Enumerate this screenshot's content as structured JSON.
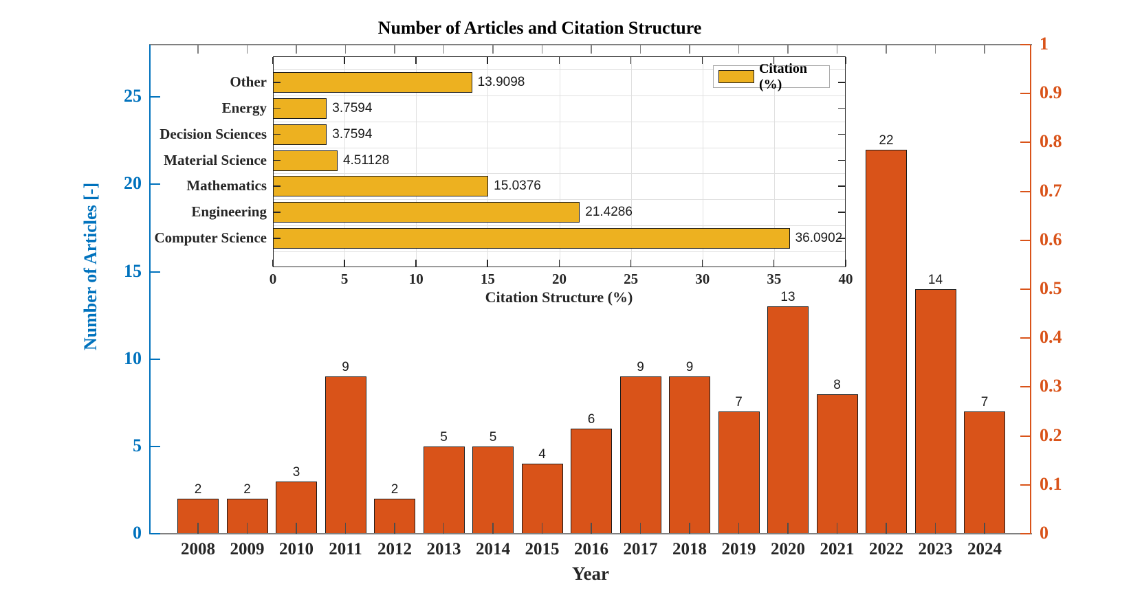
{
  "chart_data": [
    {
      "id": "articles-by-year",
      "type": "bar",
      "title": "Number of Articles and Citation Structure",
      "xlabel": "Year",
      "ylabel": "Number of Articles [-]",
      "categories": [
        "2008",
        "2009",
        "2010",
        "2011",
        "2012",
        "2013",
        "2014",
        "2015",
        "2016",
        "2017",
        "2018",
        "2019",
        "2020",
        "2021",
        "2022",
        "2023",
        "2024"
      ],
      "values": [
        2,
        2,
        3,
        9,
        2,
        5,
        5,
        4,
        6,
        9,
        9,
        7,
        13,
        8,
        22,
        14,
        7
      ],
      "bar_color": "#D95319",
      "bar_edge_color": "#1A1A1A",
      "value_label_color": "#1A1A1A",
      "left_axis": {
        "label": "Number of Articles [-]",
        "color": "#0072BD",
        "ticks": [
          0,
          5,
          10,
          15,
          20,
          25
        ],
        "lim": [
          0,
          28
        ]
      },
      "right_axis": {
        "color": "#D95319",
        "ticks": [
          0,
          0.1,
          0.2,
          0.3,
          0.4,
          0.5,
          0.6,
          0.7,
          0.8,
          0.9,
          1
        ],
        "lim": [
          0,
          1
        ]
      },
      "frame_color": "#808080",
      "tick_label_color": "#262626",
      "grid": false,
      "legend_position": "none"
    },
    {
      "id": "citation-structure",
      "type": "barh",
      "xlabel": "Citation Structure (%)",
      "categories": [
        "Other",
        "Energy",
        "Decision Sciences",
        "Material Science",
        "Mathematics",
        "Engineering",
        "Computer Science"
      ],
      "values": [
        13.9098,
        3.7594,
        3.7594,
        4.51128,
        15.0376,
        21.4286,
        36.0902
      ],
      "value_labels": [
        "13.9098",
        "3.7594",
        "3.7594",
        "4.51128",
        "15.0376",
        "21.4286",
        "36.0902"
      ],
      "bar_color": "#EDB120",
      "bar_edge_color": "#1A1A1A",
      "xticks": [
        0,
        5,
        10,
        15,
        20,
        25,
        30,
        35,
        40
      ],
      "xlim": [
        0,
        40
      ],
      "grid": true,
      "grid_color": "#E0E0E0",
      "legend": {
        "label": "Citation (%)",
        "position": "northeast"
      },
      "tick_label_color": "#262626"
    }
  ]
}
